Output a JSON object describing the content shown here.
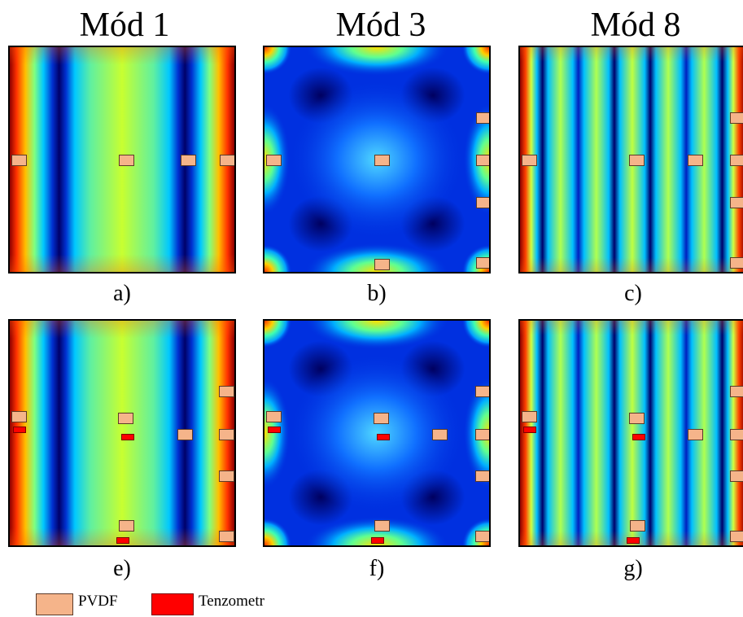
{
  "titles": {
    "col1": "Mód 1",
    "col2": "Mód 3",
    "col3": "Mód 8"
  },
  "captions": {
    "a": "a)",
    "b": "b)",
    "c": "c)",
    "e": "e)",
    "f": "f)",
    "g": "g)"
  },
  "legend": {
    "pvdf_label": "PVDF",
    "strain_label": "Tenzometr"
  },
  "colors": {
    "pvdf": "#f5b48a",
    "strain_gauge": "#ff0000",
    "colormap": "jet"
  }
}
